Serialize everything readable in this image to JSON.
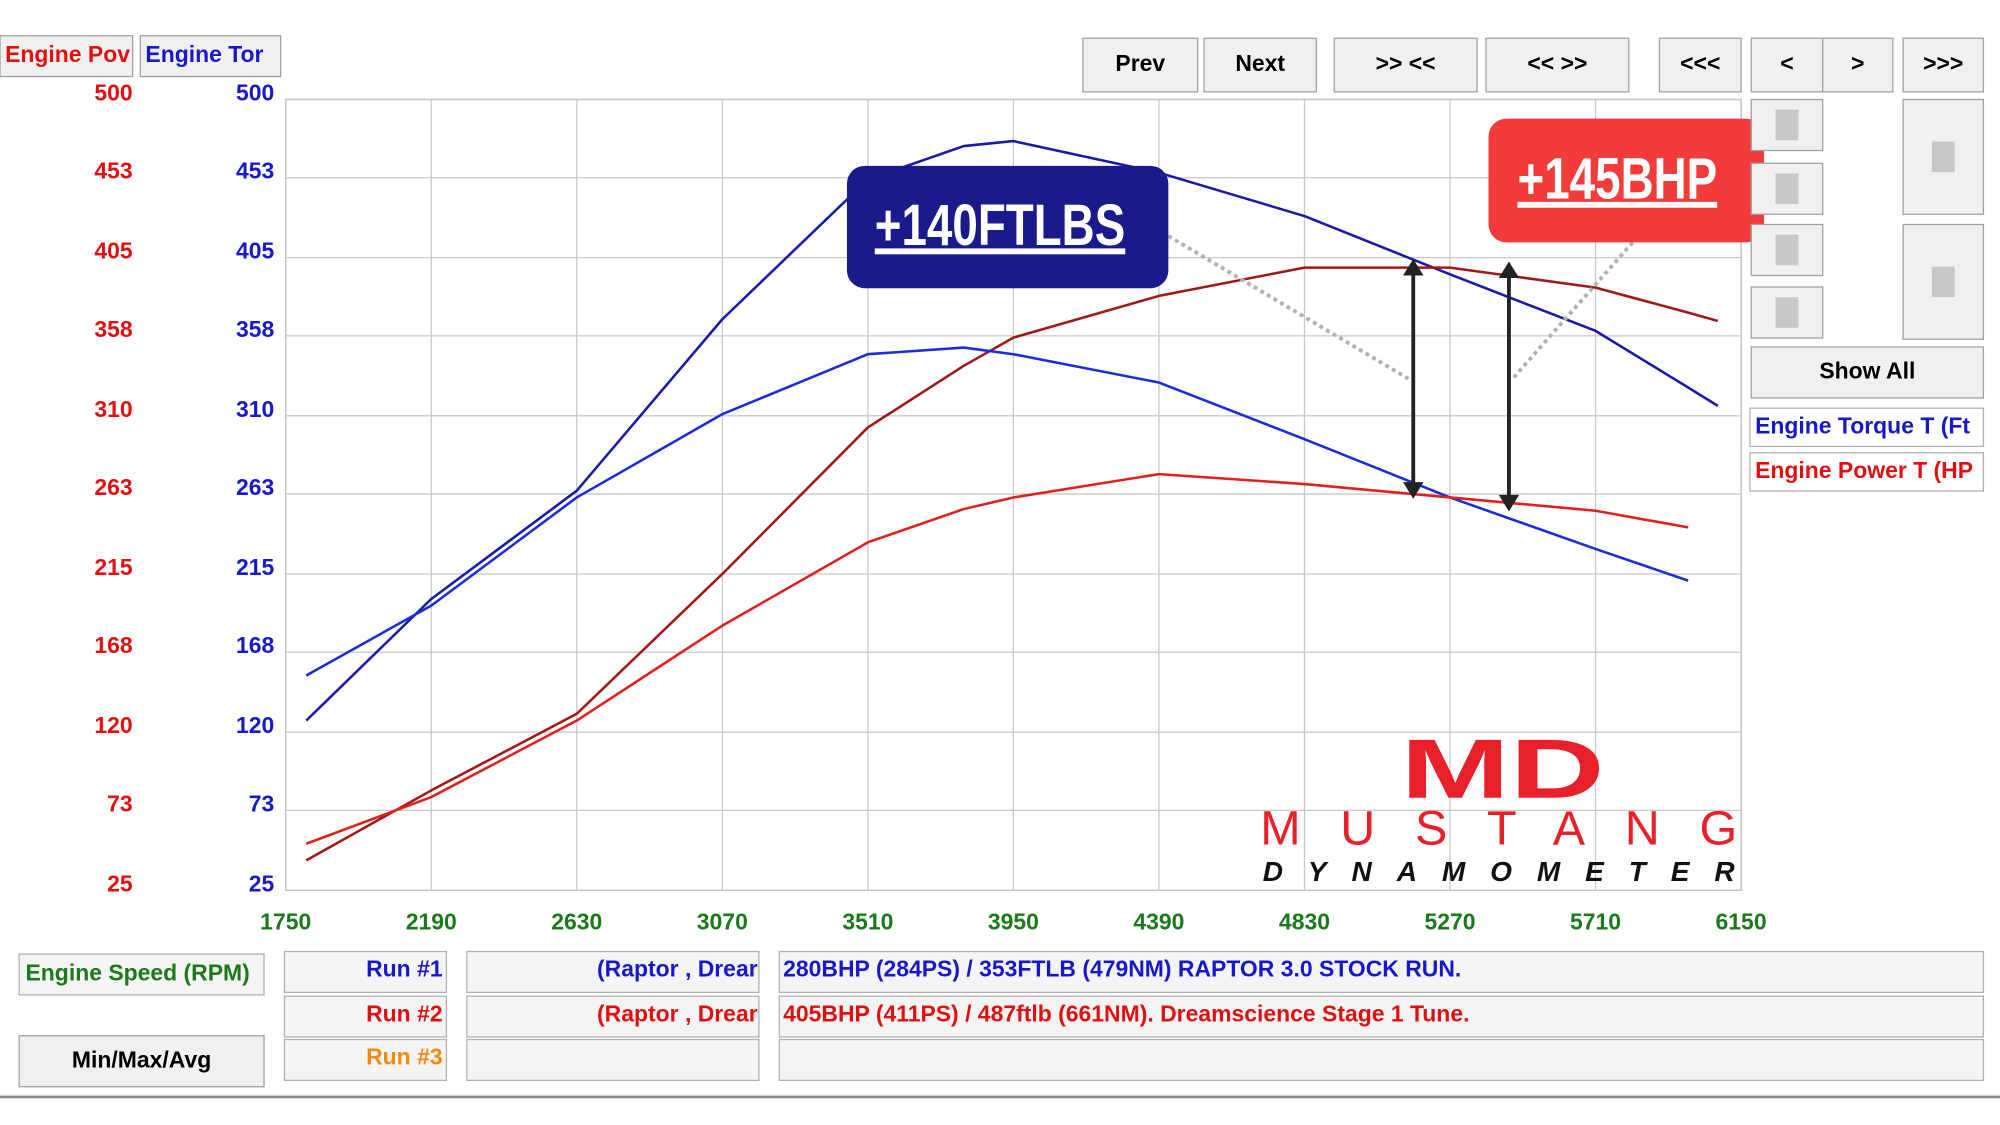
{
  "chart_data": {
    "type": "line",
    "x": [
      1812,
      2190,
      2630,
      3070,
      3510,
      3800,
      3950,
      4390,
      4830,
      5270,
      5710,
      5990,
      6080
    ],
    "series": [
      {
        "color": "#1a1aa8",
        "axis": "y2",
        "values": [
          127,
          200,
          265,
          368,
          452,
          472,
          475,
          456,
          430,
          395,
          361,
          327,
          316
        ]
      },
      {
        "color": "#a01818",
        "values": [
          43,
          85,
          131,
          215,
          303,
          340,
          357,
          382,
          399,
          399,
          387,
          372,
          367
        ]
      },
      {
        "color": "#1c2cd8",
        "axis": "y2",
        "values": [
          154,
          196,
          261,
          311,
          347,
          351,
          347,
          330,
          296,
          261,
          230,
          211,
          null
        ]
      },
      {
        "color": "#e02020",
        "values": [
          53,
          81,
          127,
          184,
          234,
          254,
          261,
          275,
          269,
          261,
          253,
          243,
          null
        ]
      }
    ],
    "xlim": [
      1750,
      6150
    ],
    "xticks": [
      1750,
      2190,
      2630,
      3070,
      3510,
      3950,
      4390,
      4830,
      5270,
      5710,
      6150
    ],
    "ylim": [
      25,
      500
    ],
    "yticks": [
      25,
      73,
      120,
      168,
      215,
      263,
      310,
      358,
      405,
      453,
      500
    ],
    "y2lim": [
      25,
      500
    ],
    "y2ticks": [
      25,
      73,
      120,
      168,
      215,
      263,
      310,
      358,
      405,
      453,
      500
    ],
    "x_label": "Engine Speed (RPM)",
    "grid": true,
    "annotations": [
      "+140FTLBS",
      "+145BHP"
    ]
  },
  "ui": {
    "tabs": [
      "Engine Pov",
      "Engine Tor"
    ],
    "buttons": [
      "Prev",
      "Next",
      ">> <<",
      "<< >>",
      "<<<",
      "<",
      ">",
      ">>>"
    ],
    "show_all": "Show All",
    "legend": [
      "Engine Torque T (Ft",
      "Engine Power T (HP"
    ],
    "min_max_avg": "Min/Max/Avg",
    "runs": [
      {
        "label": "Run #1",
        "car": "(Raptor , Drear",
        "description": "280BHP (284PS) / 353FTLB (479NM) RAPTOR 3.0 STOCK RUN."
      },
      {
        "label": "Run #2",
        "car": "(Raptor , Drear",
        "description": "405BHP (411PS) / 487ftlb (661NM). Dreamscience Stage 1 Tune."
      },
      {
        "label": "Run #3"
      }
    ],
    "logo": {
      "mark": "MD",
      "name": "MUSTANG",
      "sub": "DYNAMOMETER"
    }
  }
}
